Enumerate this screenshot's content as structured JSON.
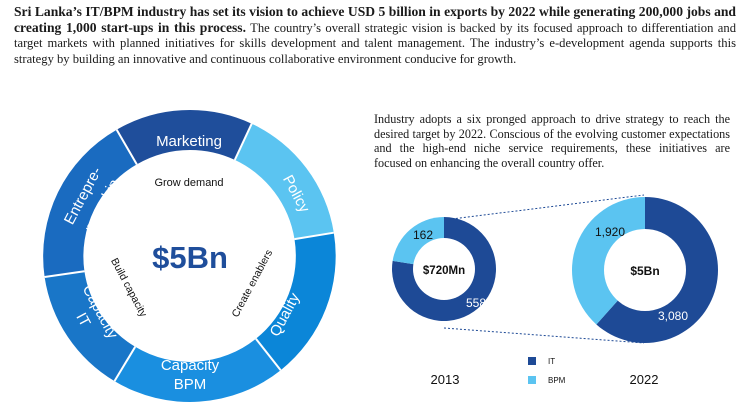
{
  "intro": {
    "headline": "Sri Lanka’s IT/BPM industry has set its vision to achieve USD 5 billion in exports by 2022 while generating 200,000 jobs and creating 1,000 start-ups in this process.",
    "body": " The country’s overall strategic vision is backed by its focused approach to differentiation and target markets with planned initiatives for skills development and talent management. The industry’s e-development agenda supports this strategy by building an innovative and continuous collaborative environment conducive for growth."
  },
  "side_text": "Industry adopts a six pronged approach to drive strategy to reach the desired target by 2022. Conscious of the evolving customer expectations and the high-end niche service requirements, these initiatives are focused on enhancing the overall country offer.",
  "wheel": {
    "center_label": "$5Bn",
    "inner_top": "Grow demand",
    "inner_left": "Build capacity",
    "inner_right": "Create enablers",
    "segments": {
      "marketing": "Marketing",
      "policy": "Policy",
      "quality": "Quality",
      "capacity_bpm_1": "Capacity",
      "capacity_bpm_2": "BPM",
      "capacity_it_1": "Capacity",
      "capacity_it_2": "IT",
      "entrepreneurship_1": "Entrepre-",
      "entrepreneurship_2": "neurship"
    },
    "colors": {
      "dark": "#1f4e9b",
      "mid": "#0b86d8",
      "light": "#5bc4f1"
    }
  },
  "chart_data": [
    {
      "type": "pie",
      "title": "2013",
      "center_label": "$720Mn",
      "series": [
        {
          "name": "IT",
          "values": [
            558
          ]
        },
        {
          "name": "BPM",
          "values": [
            162
          ]
        }
      ],
      "labels": {
        "it": "558",
        "bpm": "162"
      }
    },
    {
      "type": "pie",
      "title": "2022",
      "center_label": "$5Bn",
      "series": [
        {
          "name": "IT",
          "values": [
            3080
          ]
        },
        {
          "name": "BPM",
          "values": [
            1920
          ]
        }
      ],
      "labels": {
        "it": "3,080",
        "bpm": "1,920"
      }
    }
  ],
  "legend": {
    "it_label": "IT",
    "bpm_label": "BPM",
    "it_color": "#1e4a96",
    "bpm_color": "#5bc4f1"
  }
}
